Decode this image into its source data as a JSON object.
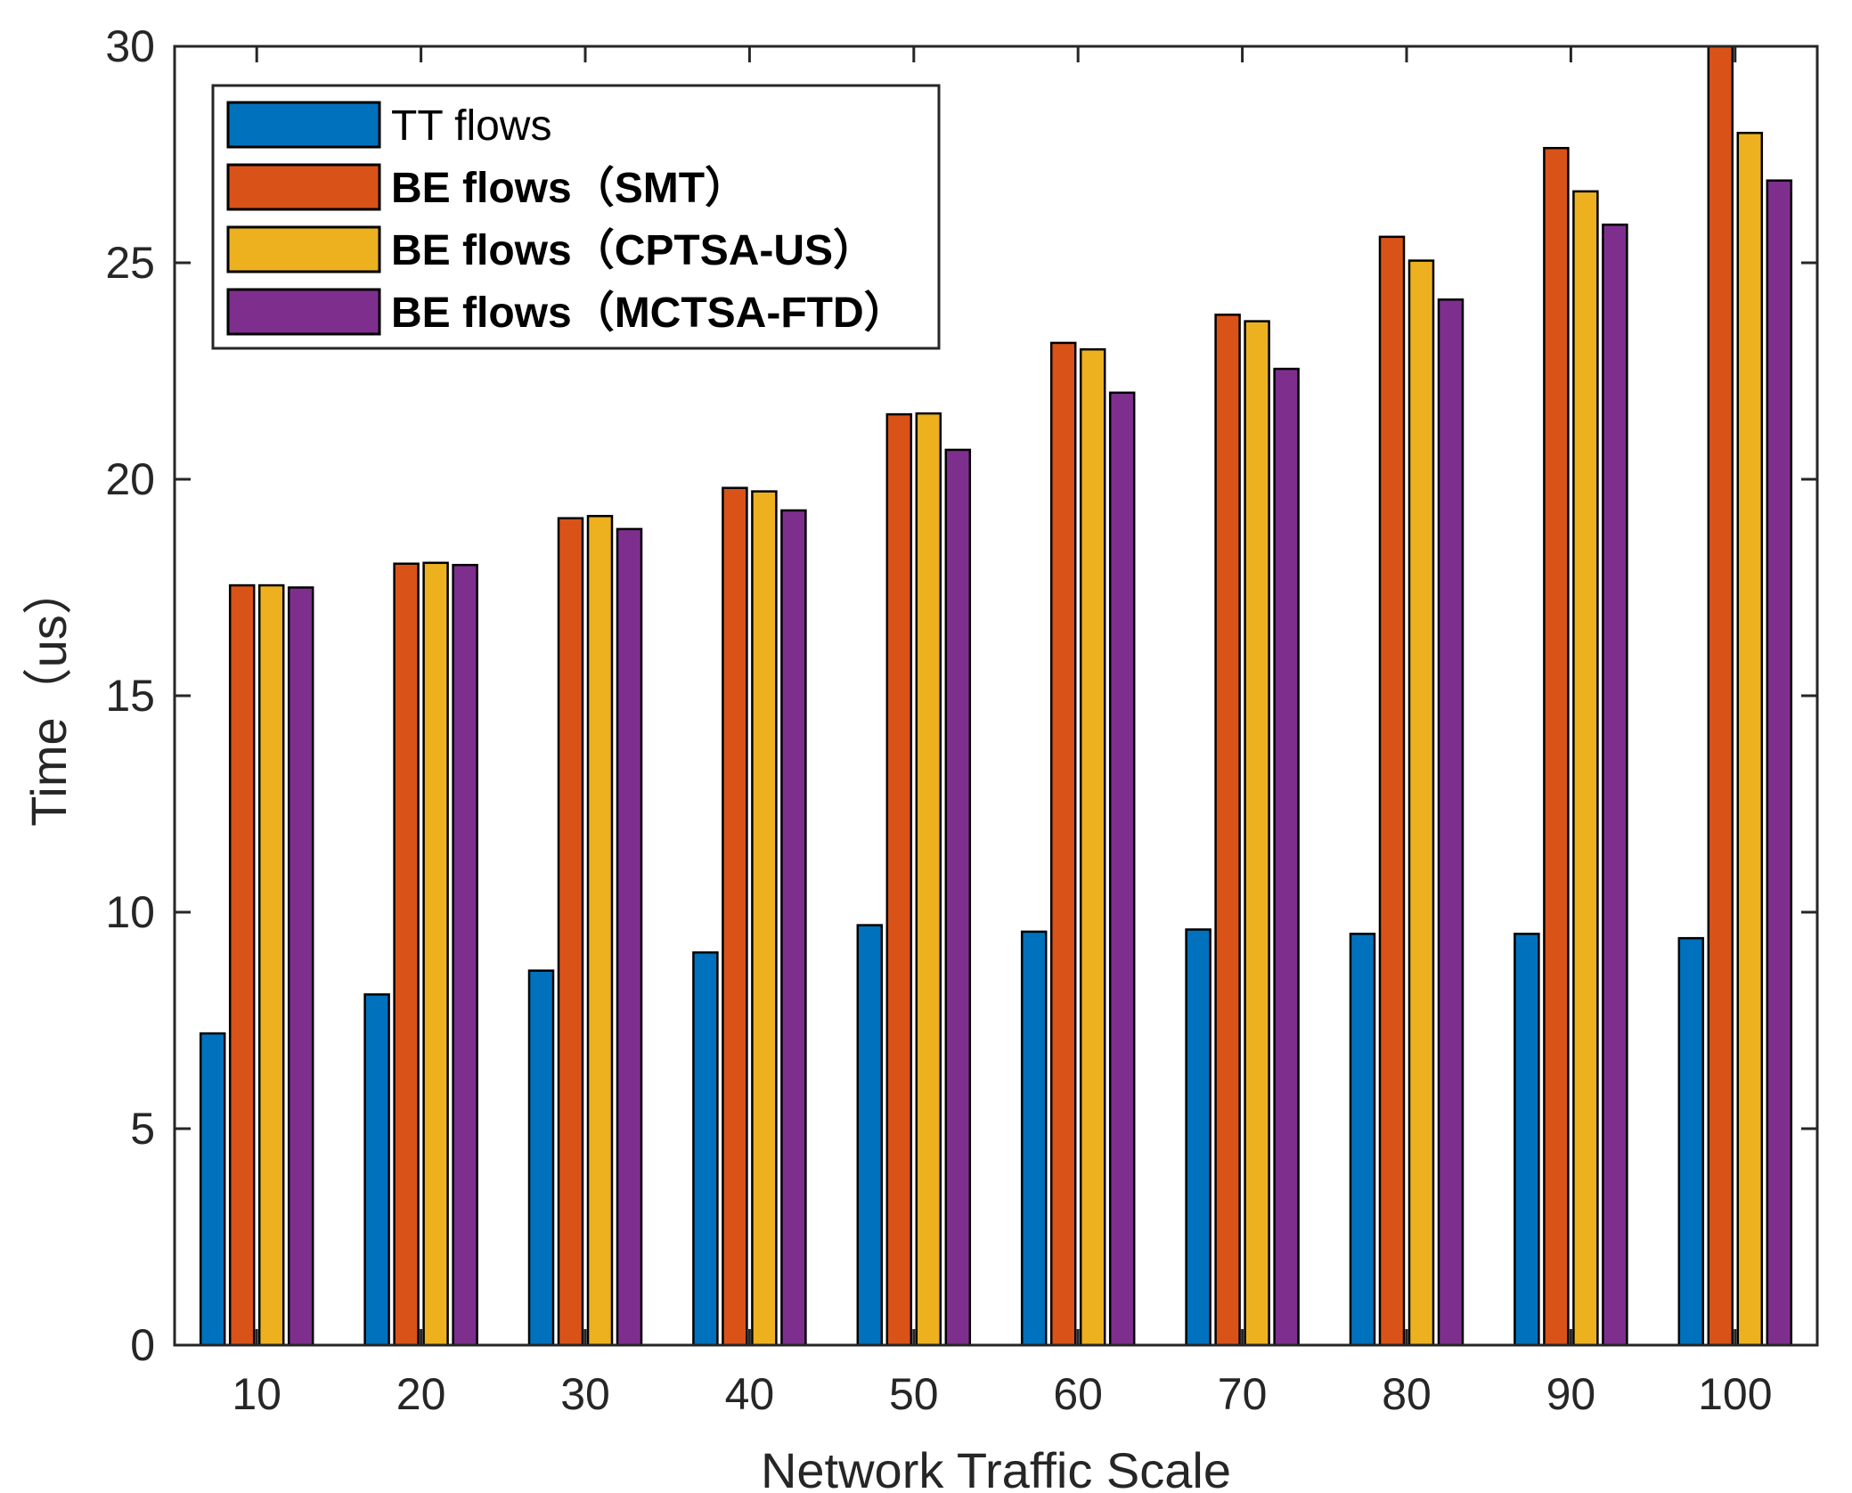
{
  "chart_data": {
    "type": "bar",
    "title": "",
    "xlabel": "Network Traffic Scale",
    "ylabel": "Time（us）",
    "ylim": [
      0,
      30
    ],
    "yticks": [
      0,
      5,
      10,
      15,
      20,
      25,
      30
    ],
    "categories": [
      "10",
      "20",
      "30",
      "40",
      "50",
      "60",
      "70",
      "80",
      "90",
      "100"
    ],
    "grid": false,
    "legend_position": "top-left",
    "series": [
      {
        "name": "TT flows",
        "color": "#0072BD",
        "bold": false,
        "values": [
          7.2,
          8.1,
          8.65,
          9.07,
          9.7,
          9.55,
          9.6,
          9.5,
          9.5,
          9.4
        ]
      },
      {
        "name": "BE flows（SMT）",
        "color": "#D95319",
        "bold": true,
        "values": [
          17.55,
          18.05,
          19.1,
          19.8,
          21.5,
          23.15,
          23.8,
          25.6,
          27.65,
          30.0
        ]
      },
      {
        "name": "BE flows（CPTSA-US）",
        "color": "#EDB120",
        "bold": true,
        "values": [
          17.55,
          18.07,
          19.15,
          19.72,
          21.52,
          23.0,
          23.65,
          25.05,
          26.65,
          28.0
        ]
      },
      {
        "name": "BE flows（MCTSA-FTD）",
        "color": "#7E2F8E",
        "bold": true,
        "values": [
          17.5,
          18.02,
          18.85,
          19.28,
          20.68,
          22.0,
          22.55,
          24.15,
          25.88,
          26.9
        ]
      }
    ]
  }
}
